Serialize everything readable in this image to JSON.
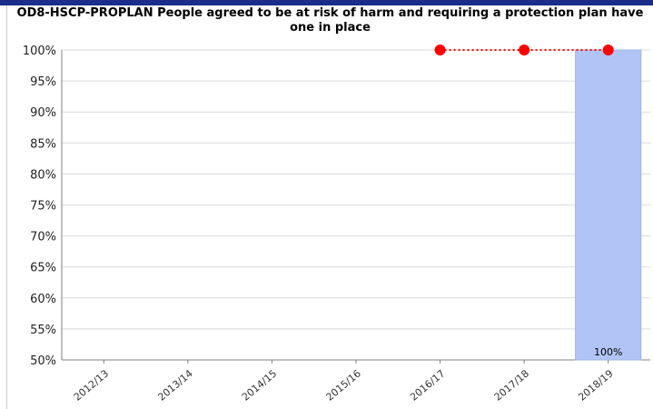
{
  "chart_data": {
    "type": "bar",
    "title": "OD8-HSCP-PROPLAN People agreed to be at risk of harm and requiring a protection plan have one in place",
    "categories": [
      "2012/13",
      "2013/14",
      "2014/15",
      "2015/16",
      "2016/17",
      "2017/18",
      "2018/19"
    ],
    "bar_series": {
      "values": [
        null,
        null,
        null,
        null,
        null,
        null,
        100
      ],
      "color": "#b0c4f5",
      "data_labels": [
        "",
        "",
        "",
        "",
        "",
        "",
        "100%"
      ]
    },
    "line_series": {
      "values": [
        null,
        null,
        null,
        null,
        100,
        100,
        100
      ],
      "color": "#ff0000",
      "style": "dotted",
      "marker": "circle"
    },
    "ylim": [
      50,
      100
    ],
    "yticks": [
      50,
      55,
      60,
      65,
      70,
      75,
      80,
      85,
      90,
      95,
      100
    ],
    "ytick_format": "%",
    "grid": true,
    "legend": "none"
  }
}
